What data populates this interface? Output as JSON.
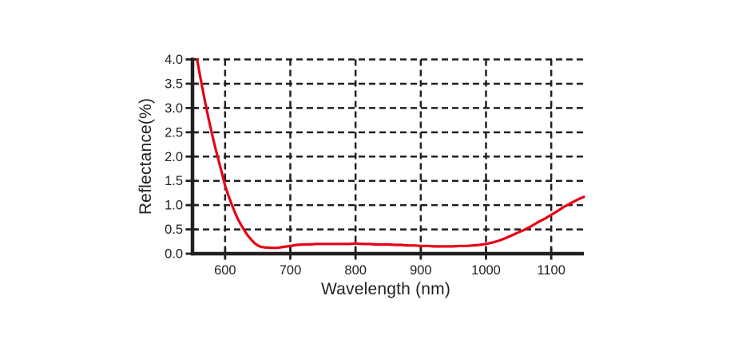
{
  "colors": {
    "background": "#ffffff",
    "axis": "#231f20",
    "grid": "#231f20",
    "text": "#231f20",
    "curve": "#e60014"
  },
  "chart_data": {
    "type": "line",
    "title": "",
    "xlabel": "Wavelength (nm)",
    "ylabel": "Reflectance(%)",
    "xlim": [
      550,
      1150
    ],
    "ylim": [
      0.0,
      4.0
    ],
    "grid": "dashed-both-directions",
    "legend": "none",
    "xtick_values": [
      600,
      700,
      800,
      900,
      1000,
      1100
    ],
    "xtick_labels": [
      "600",
      "700",
      "800",
      "900",
      "1000",
      "1100"
    ],
    "ytick_values": [
      0,
      0.5,
      1,
      1.5,
      2,
      2.5,
      3,
      3.5,
      4
    ],
    "ytick_labels": [
      "0.0",
      "0.5",
      "1.0",
      "1.5",
      "2.0",
      "2.5",
      "3.0",
      "3.5",
      "4.0"
    ],
    "series": [
      {
        "id": "reflectance",
        "color": "#e60014",
        "points": [
          [
            557,
            4.0
          ],
          [
            560,
            3.78
          ],
          [
            565,
            3.42
          ],
          [
            570,
            3.08
          ],
          [
            575,
            2.76
          ],
          [
            580,
            2.46
          ],
          [
            585,
            2.18
          ],
          [
            590,
            1.92
          ],
          [
            595,
            1.66
          ],
          [
            600,
            1.4
          ],
          [
            605,
            1.2
          ],
          [
            610,
            1.02
          ],
          [
            615,
            0.85
          ],
          [
            620,
            0.7
          ],
          [
            625,
            0.58
          ],
          [
            630,
            0.47
          ],
          [
            635,
            0.37
          ],
          [
            640,
            0.29
          ],
          [
            645,
            0.22
          ],
          [
            650,
            0.17
          ],
          [
            655,
            0.14
          ],
          [
            660,
            0.13
          ],
          [
            670,
            0.12
          ],
          [
            680,
            0.12
          ],
          [
            690,
            0.14
          ],
          [
            700,
            0.16
          ],
          [
            710,
            0.18
          ],
          [
            720,
            0.19
          ],
          [
            730,
            0.19
          ],
          [
            740,
            0.2
          ],
          [
            750,
            0.2
          ],
          [
            760,
            0.2
          ],
          [
            770,
            0.2
          ],
          [
            780,
            0.2
          ],
          [
            790,
            0.2
          ],
          [
            800,
            0.21
          ],
          [
            810,
            0.2
          ],
          [
            820,
            0.2
          ],
          [
            830,
            0.19
          ],
          [
            840,
            0.19
          ],
          [
            850,
            0.19
          ],
          [
            860,
            0.18
          ],
          [
            870,
            0.18
          ],
          [
            880,
            0.17
          ],
          [
            890,
            0.17
          ],
          [
            900,
            0.16
          ],
          [
            910,
            0.16
          ],
          [
            920,
            0.15
          ],
          [
            930,
            0.15
          ],
          [
            940,
            0.15
          ],
          [
            950,
            0.15
          ],
          [
            960,
            0.16
          ],
          [
            970,
            0.16
          ],
          [
            980,
            0.17
          ],
          [
            990,
            0.18
          ],
          [
            1000,
            0.2
          ],
          [
            1010,
            0.23
          ],
          [
            1020,
            0.27
          ],
          [
            1030,
            0.32
          ],
          [
            1040,
            0.38
          ],
          [
            1050,
            0.44
          ],
          [
            1060,
            0.5
          ],
          [
            1070,
            0.57
          ],
          [
            1080,
            0.65
          ],
          [
            1090,
            0.72
          ],
          [
            1100,
            0.8
          ],
          [
            1110,
            0.88
          ],
          [
            1120,
            0.97
          ],
          [
            1130,
            1.04
          ],
          [
            1140,
            1.11
          ],
          [
            1150,
            1.17
          ]
        ]
      }
    ]
  }
}
